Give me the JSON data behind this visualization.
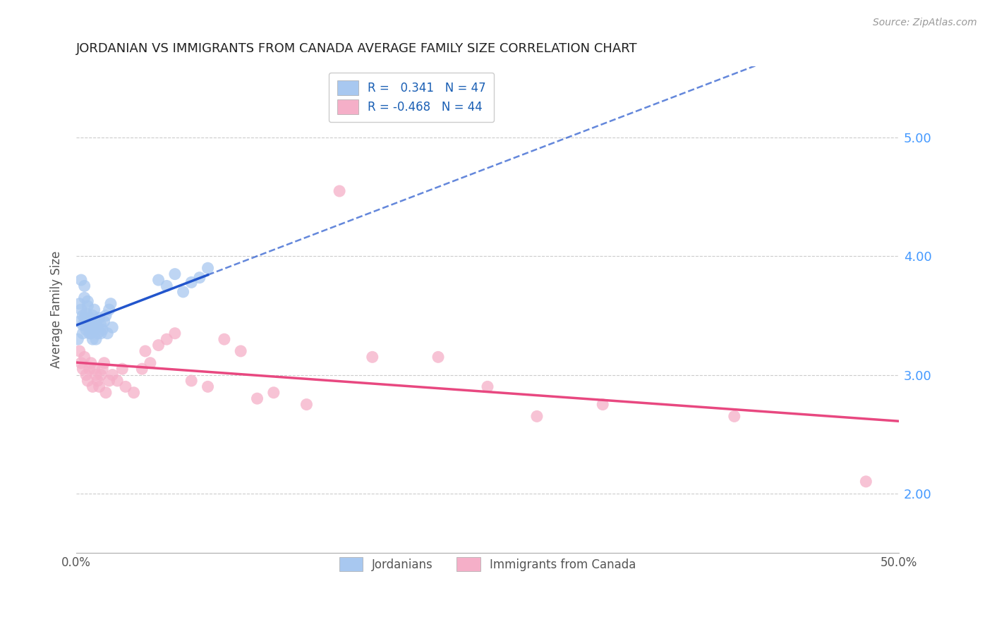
{
  "title": "JORDANIAN VS IMMIGRANTS FROM CANADA AVERAGE FAMILY SIZE CORRELATION CHART",
  "source": "Source: ZipAtlas.com",
  "ylabel": "Average Family Size",
  "right_yticks": [
    2.0,
    3.0,
    4.0,
    5.0
  ],
  "xmin": 0.0,
  "xmax": 0.5,
  "ymin": 1.5,
  "ymax": 5.6,
  "legend_r1": "R =   0.341   N = 47",
  "legend_r2": "R = -0.468   N = 44",
  "blue_color": "#a8c8f0",
  "pink_color": "#f5afc8",
  "blue_line_color": "#2255cc",
  "pink_line_color": "#e84880",
  "jordanians_x": [
    0.001,
    0.002,
    0.002,
    0.003,
    0.003,
    0.004,
    0.004,
    0.004,
    0.005,
    0.005,
    0.005,
    0.006,
    0.006,
    0.007,
    0.007,
    0.007,
    0.008,
    0.008,
    0.008,
    0.009,
    0.009,
    0.01,
    0.01,
    0.01,
    0.011,
    0.011,
    0.012,
    0.012,
    0.013,
    0.013,
    0.014,
    0.015,
    0.015,
    0.016,
    0.017,
    0.018,
    0.019,
    0.02,
    0.021,
    0.022,
    0.05,
    0.055,
    0.06,
    0.065,
    0.07,
    0.075,
    0.08
  ],
  "jordanians_y": [
    3.3,
    3.6,
    3.45,
    3.8,
    3.55,
    3.35,
    3.5,
    3.42,
    3.65,
    3.75,
    3.48,
    3.38,
    3.52,
    3.58,
    3.45,
    3.62,
    3.4,
    3.35,
    3.48,
    3.45,
    3.35,
    3.5,
    3.42,
    3.3,
    3.55,
    3.38,
    3.45,
    3.3,
    3.4,
    3.35,
    3.48,
    3.42,
    3.35,
    3.38,
    3.45,
    3.5,
    3.35,
    3.55,
    3.6,
    3.4,
    3.8,
    3.75,
    3.85,
    3.7,
    3.78,
    3.82,
    3.9
  ],
  "canada_x": [
    0.002,
    0.003,
    0.004,
    0.005,
    0.006,
    0.007,
    0.008,
    0.009,
    0.01,
    0.011,
    0.012,
    0.013,
    0.014,
    0.015,
    0.016,
    0.017,
    0.018,
    0.02,
    0.022,
    0.025,
    0.028,
    0.03,
    0.035,
    0.04,
    0.042,
    0.045,
    0.05,
    0.055,
    0.06,
    0.07,
    0.08,
    0.09,
    0.1,
    0.11,
    0.12,
    0.14,
    0.16,
    0.18,
    0.22,
    0.25,
    0.28,
    0.32,
    0.4,
    0.48
  ],
  "canada_y": [
    3.2,
    3.1,
    3.05,
    3.15,
    3.0,
    2.95,
    3.05,
    3.1,
    2.9,
    3.05,
    3.0,
    2.95,
    2.9,
    3.0,
    3.05,
    3.1,
    2.85,
    2.95,
    3.0,
    2.95,
    3.05,
    2.9,
    2.85,
    3.05,
    3.2,
    3.1,
    3.25,
    3.3,
    3.35,
    2.95,
    2.9,
    3.3,
    3.2,
    2.8,
    2.85,
    2.75,
    4.55,
    3.15,
    3.15,
    2.9,
    2.65,
    2.75,
    2.65,
    2.1
  ]
}
